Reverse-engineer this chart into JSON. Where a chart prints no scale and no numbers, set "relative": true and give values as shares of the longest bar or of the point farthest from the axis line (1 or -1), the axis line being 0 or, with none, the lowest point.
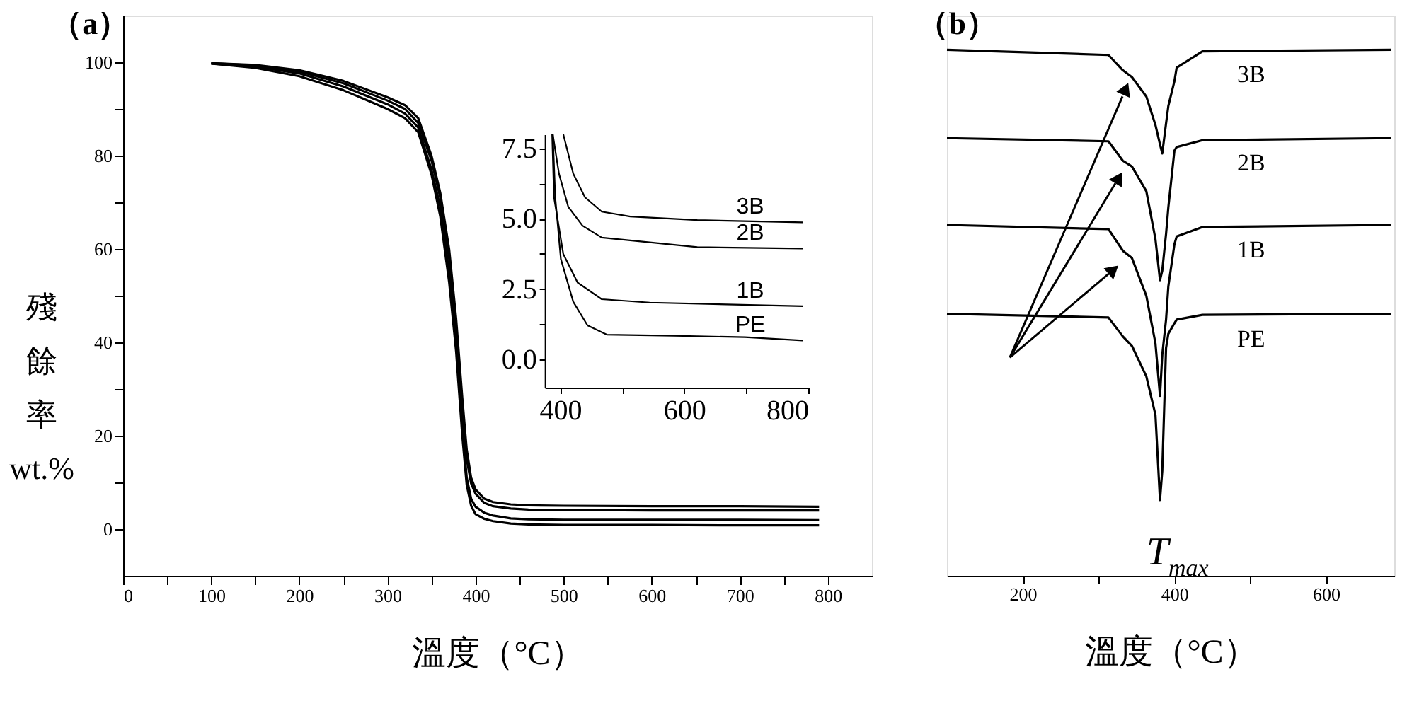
{
  "chart_data": [
    {
      "type": "line",
      "title": "（a）",
      "xlabel": "溫度（°C）",
      "ylabel": "殘餘率 wt.%",
      "x": [
        100,
        150,
        200,
        250,
        300,
        320,
        335,
        350,
        360,
        370,
        378,
        385,
        390,
        395,
        400,
        410,
        420,
        440,
        460,
        500,
        600,
        700,
        790
      ],
      "series": [
        {
          "color": "#000000",
          "values": [
            99.8,
            99.4,
            98.3,
            96,
            92.5,
            90.8,
            88,
            80,
            72,
            60,
            45,
            28,
            17,
            11,
            8.5,
            6.5,
            5.8,
            5.3,
            5.1,
            5.0,
            4.9,
            4.9,
            4.8
          ]
        },
        {
          "color": "#000000",
          "values": [
            99.8,
            99.3,
            98,
            95.5,
            91.8,
            90,
            87,
            79,
            71,
            58,
            43,
            26,
            15,
            9.8,
            7.6,
            5.6,
            4.9,
            4.4,
            4.2,
            4.1,
            4.0,
            4.0,
            4.0
          ]
        },
        {
          "color": "#000000",
          "values": [
            99.7,
            99.1,
            97.6,
            94.8,
            91,
            89,
            86,
            77,
            69,
            55,
            40,
            22,
            11,
            6.5,
            4.8,
            3.5,
            2.9,
            2.3,
            2.1,
            2.0,
            2.0,
            2.0,
            1.9
          ]
        },
        {
          "color": "#000000",
          "values": [
            99.7,
            98.8,
            97,
            94,
            90,
            88,
            85,
            76,
            67,
            53,
            38,
            20,
            9.5,
            5,
            3.2,
            2.2,
            1.7,
            1.2,
            1.0,
            0.9,
            0.9,
            0.8,
            0.8
          ]
        }
      ],
      "xlim": [
        0,
        850
      ],
      "ylim": [
        -10,
        110
      ],
      "xticks": [
        0,
        {
          "value": 50,
          "label": null
        },
        100,
        {
          "value": 150,
          "label": null
        },
        200,
        {
          "value": 250,
          "label": null
        },
        300,
        {
          "value": 350,
          "label": null
        },
        400,
        {
          "value": 450,
          "label": null
        },
        500,
        {
          "value": 550,
          "label": null
        },
        600,
        {
          "value": 650,
          "label": null
        },
        700,
        {
          "value": 750,
          "label": null
        },
        800
      ],
      "yticks": [
        0,
        {
          "value": 10,
          "label": null
        },
        20,
        {
          "value": 30,
          "label": null
        },
        40,
        {
          "value": 50,
          "label": null
        },
        60,
        {
          "value": 70,
          "label": null
        },
        80,
        {
          "value": 90,
          "label": null
        },
        100
      ],
      "grid": false
    },
    {
      "type": "line",
      "series": [
        {
          "name": "3B",
          "color": "#000000",
          "x": [
            405,
            421,
            440,
            467,
            513,
            621,
            791
          ],
          "values": [
            8.0,
            6.6,
            5.76,
            5.25,
            5.08,
            4.95,
            4.87
          ]
        },
        {
          "name": "2B",
          "color": "#000000",
          "x": [
            388,
            398,
            413,
            436,
            467,
            544,
            621,
            791
          ],
          "values": [
            8.0,
            6.6,
            5.42,
            4.75,
            4.33,
            4.16,
            3.99,
            3.94
          ]
        },
        {
          "name": "1B",
          "color": "#000000",
          "x": [
            387,
            390,
            405,
            428,
            467,
            544,
            791
          ],
          "values": [
            8.0,
            5.76,
            3.74,
            2.73,
            2.14,
            2.02,
            1.89
          ]
        },
        {
          "name": "PE",
          "color": "#000000",
          "x": [
            388,
            392,
            401,
            421,
            444,
            475,
            583,
            698,
            791
          ],
          "values": [
            8.0,
            5.76,
            3.57,
            2.05,
            1.21,
            0.88,
            0.84,
            0.79,
            0.67
          ]
        }
      ],
      "xlim": [
        375,
        800
      ],
      "ylim": [
        -1,
        8
      ],
      "xticks": [
        400,
        {
          "value": 500,
          "label": null
        },
        600,
        {
          "value": 700,
          "label": null
        },
        800
      ],
      "yticks": [
        {
          "value": 0,
          "label": "0.0"
        },
        {
          "value": 1.25,
          "label": null
        },
        {
          "value": 2.5,
          "label": "2.5"
        },
        {
          "value": 3.75,
          "label": null
        },
        {
          "value": 5,
          "label": "5.0"
        },
        {
          "value": 6.25,
          "label": null
        },
        {
          "value": 7.5,
          "label": "7.5"
        }
      ],
      "grid": false
    },
    {
      "type": "line",
      "title": "（b）",
      "xlabel": "溫度（°C）",
      "relative": true,
      "tick_labels": "x",
      "x": [
        100,
        313,
        332,
        344,
        363,
        375,
        381,
        384,
        389,
        392,
        400,
        403,
        437,
        686
      ],
      "series": [
        {
          "name": "3B",
          "color": "#000000",
          "values": [
            1.0,
            0.99,
            0.961,
            0.948,
            0.911,
            0.857,
            0.82,
            0.803,
            0.86,
            0.893,
            0.94,
            0.966,
            0.997,
            1.0
          ]
        },
        {
          "name": "2B",
          "color": "#000000",
          "values": [
            0.832,
            0.826,
            0.789,
            0.778,
            0.731,
            0.64,
            0.562,
            0.58,
            0.65,
            0.7,
            0.808,
            0.815,
            0.828,
            0.832
          ]
        },
        {
          "name": "1B",
          "color": "#000000",
          "values": [
            0.667,
            0.659,
            0.618,
            0.604,
            0.532,
            0.442,
            0.342,
            0.42,
            0.487,
            0.55,
            0.63,
            0.645,
            0.663,
            0.667
          ]
        },
        {
          "name": "PE",
          "color": "#000000",
          "values": [
            0.498,
            0.491,
            0.455,
            0.437,
            0.379,
            0.306,
            0.144,
            0.2,
            0.433,
            0.46,
            0.48,
            0.487,
            0.496,
            0.498
          ]
        }
      ],
      "xlim": [
        100,
        690
      ],
      "xticks": [
        200,
        {
          "value": 300,
          "label": null
        },
        400,
        {
          "value": 500,
          "label": null
        },
        600
      ],
      "annotations": [
        "T$_{max}$"
      ],
      "grid": false
    }
  ]
}
